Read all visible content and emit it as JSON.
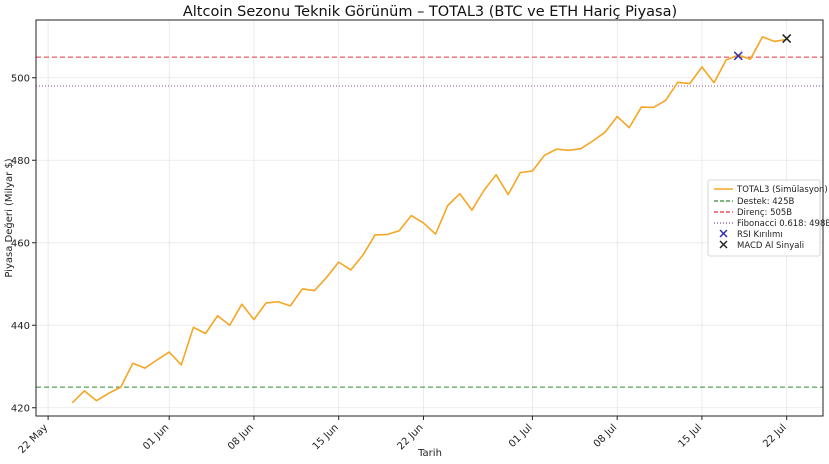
{
  "chart_data": {
    "type": "line",
    "title": "Altcoin Sezonu Teknik Görünüm – TOTAL3 (BTC ve ETH Hariç Piyasa)",
    "xlabel": "Tarih",
    "ylabel": "Piyasa Değeri (Milyar $)",
    "ylim": [
      418,
      514
    ],
    "xlim": [
      "2025-05-21",
      "2025-07-25"
    ],
    "grid": true,
    "legend_position": "right",
    "x_ticks": [
      {
        "date": "2025-05-22",
        "label": "22 May"
      },
      {
        "date": "2025-06-01",
        "label": "01 Jun"
      },
      {
        "date": "2025-06-08",
        "label": "08 Jun"
      },
      {
        "date": "2025-06-15",
        "label": "15 Jun"
      },
      {
        "date": "2025-06-22",
        "label": "22 Jun"
      },
      {
        "date": "2025-07-01",
        "label": "01 Jul"
      },
      {
        "date": "2025-07-08",
        "label": "08 Jul"
      },
      {
        "date": "2025-07-15",
        "label": "15 Jul"
      },
      {
        "date": "2025-07-22",
        "label": "22 Jul"
      }
    ],
    "y_ticks": [
      420,
      440,
      460,
      480,
      500
    ],
    "series": [
      {
        "name": "TOTAL3 (Simülasyon)",
        "color": "#f5a623",
        "x": [
          "2025-05-24",
          "2025-05-25",
          "2025-05-26",
          "2025-05-27",
          "2025-05-28",
          "2025-05-29",
          "2025-05-30",
          "2025-05-31",
          "2025-06-01",
          "2025-06-02",
          "2025-06-03",
          "2025-06-04",
          "2025-06-05",
          "2025-06-06",
          "2025-06-07",
          "2025-06-08",
          "2025-06-09",
          "2025-06-10",
          "2025-06-11",
          "2025-06-12",
          "2025-06-13",
          "2025-06-14",
          "2025-06-15",
          "2025-06-16",
          "2025-06-17",
          "2025-06-18",
          "2025-06-19",
          "2025-06-20",
          "2025-06-21",
          "2025-06-22",
          "2025-06-23",
          "2025-06-24",
          "2025-06-25",
          "2025-06-26",
          "2025-06-27",
          "2025-06-28",
          "2025-06-29",
          "2025-06-30",
          "2025-07-01",
          "2025-07-02",
          "2025-07-03",
          "2025-07-04",
          "2025-07-05",
          "2025-07-06",
          "2025-07-07",
          "2025-07-08",
          "2025-07-09",
          "2025-07-10",
          "2025-07-11",
          "2025-07-12",
          "2025-07-13",
          "2025-07-14",
          "2025-07-15",
          "2025-07-16",
          "2025-07-17",
          "2025-07-18",
          "2025-07-19",
          "2025-07-20",
          "2025-07-21",
          "2025-07-22"
        ],
        "values": [
          421.2,
          424.1,
          421.7,
          423.5,
          425.0,
          430.8,
          429.6,
          431.6,
          433.5,
          430.4,
          439.5,
          438.0,
          442.3,
          440.0,
          445.1,
          441.4,
          445.4,
          445.7,
          444.7,
          448.8,
          448.4,
          451.6,
          455.3,
          453.4,
          457.0,
          461.9,
          462.0,
          462.9,
          466.6,
          464.8,
          462.1,
          469.0,
          471.9,
          467.9,
          472.7,
          476.5,
          471.7,
          477.0,
          477.4,
          481.2,
          482.7,
          482.4,
          482.8,
          484.7,
          486.8,
          490.6,
          487.9,
          492.9,
          492.8,
          494.5,
          498.9,
          498.6,
          502.6,
          498.8,
          504.3,
          505.5,
          504.5,
          509.9,
          508.8,
          509.3
        ]
      }
    ],
    "reference_lines": [
      {
        "name": "Destek: 425B",
        "value": 425,
        "color": "#2e8b2e",
        "style": "dashed"
      },
      {
        "name": "Direnç: 505B",
        "value": 505,
        "color": "#e8333a",
        "style": "dashed"
      },
      {
        "name": "Fibonacci 0.618: 498B",
        "value": 498,
        "color": "#8a4a9a",
        "style": "dotted"
      }
    ],
    "markers": [
      {
        "name": "RSI Kırılımı",
        "date": "2025-07-18",
        "value": 505.3,
        "color": "#2b2bb8"
      },
      {
        "name": "MACD Al Sinyali",
        "date": "2025-07-22",
        "value": 509.5,
        "color": "#222222"
      }
    ]
  }
}
